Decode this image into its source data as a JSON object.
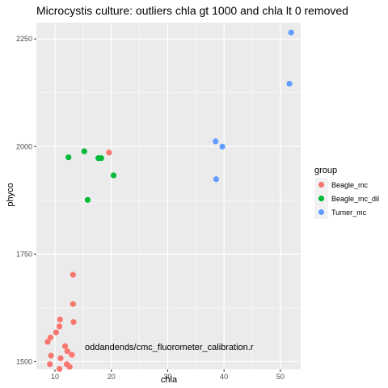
{
  "chart_data": {
    "type": "scatter",
    "title": "Microcystis culture: outliers chla gt 1000 and chla lt 0 removed",
    "xlabel": "chla",
    "ylabel": "phyco",
    "xlim": [
      6.7,
      53.6
    ],
    "ylim": [
      1482,
      2288
    ],
    "x_ticks": [
      10,
      20,
      30,
      40,
      50
    ],
    "y_ticks": [
      1500,
      1750,
      2000,
      2250
    ],
    "grid": true,
    "panel_background": "#ebebeb",
    "grid_color": "#ffffff",
    "legend": {
      "title": "group",
      "position": "right"
    },
    "annotation": "oddandends/cmc_fluorometer_calibration.r",
    "series": [
      {
        "name": "Beagle_mc",
        "color": "#F8766D",
        "points": [
          {
            "x": 19.6,
            "y": 1986
          },
          {
            "x": 13.2,
            "y": 1702
          },
          {
            "x": 13.2,
            "y": 1634
          },
          {
            "x": 13.3,
            "y": 1592
          },
          {
            "x": 10.9,
            "y": 1598
          },
          {
            "x": 10.8,
            "y": 1582
          },
          {
            "x": 10.2,
            "y": 1568
          },
          {
            "x": 9.2,
            "y": 1556
          },
          {
            "x": 8.7,
            "y": 1546
          },
          {
            "x": 11.8,
            "y": 1536
          },
          {
            "x": 12.2,
            "y": 1524
          },
          {
            "x": 9.3,
            "y": 1514
          },
          {
            "x": 11.0,
            "y": 1508
          },
          {
            "x": 13.0,
            "y": 1516
          },
          {
            "x": 9.1,
            "y": 1494
          },
          {
            "x": 12.1,
            "y": 1494
          },
          {
            "x": 12.6,
            "y": 1488
          },
          {
            "x": 10.8,
            "y": 1483
          }
        ]
      },
      {
        "name": "Beagle_mc_dil",
        "color": "#00BA38",
        "points": [
          {
            "x": 12.4,
            "y": 1975
          },
          {
            "x": 15.2,
            "y": 1989
          },
          {
            "x": 17.7,
            "y": 1973
          },
          {
            "x": 18.2,
            "y": 1973
          },
          {
            "x": 20.4,
            "y": 1933
          },
          {
            "x": 15.8,
            "y": 1876
          }
        ]
      },
      {
        "name": "Turner_mc",
        "color": "#619CFF",
        "points": [
          {
            "x": 51.9,
            "y": 2265
          },
          {
            "x": 51.6,
            "y": 2146
          },
          {
            "x": 38.5,
            "y": 2012
          },
          {
            "x": 39.7,
            "y": 2000
          },
          {
            "x": 38.6,
            "y": 1924
          }
        ]
      }
    ]
  }
}
